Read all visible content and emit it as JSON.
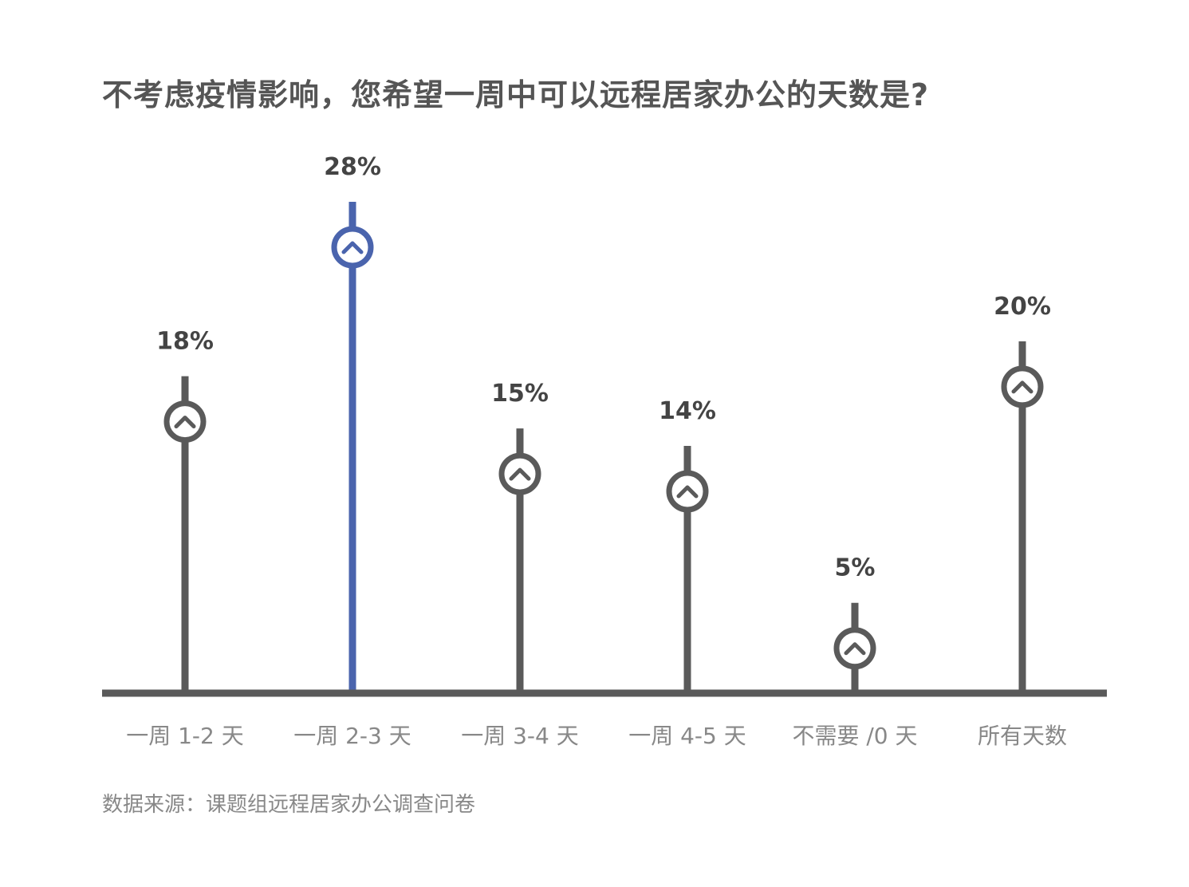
{
  "chart_data": {
    "type": "lollipop",
    "title": "不考虑疫情影响，您希望一周中可以远程居家办公的天数是?",
    "categories": [
      "一周 1-2 天",
      "一周 2-3 天",
      "一周 3-4 天",
      "一周 4-5 天",
      "不需要 /0 天",
      "所有天数"
    ],
    "values": [
      18,
      28,
      15,
      14,
      5,
      20
    ],
    "value_labels": [
      "18%",
      "28%",
      "15%",
      "14%",
      "5%",
      "20%"
    ],
    "highlight_index": 1,
    "unit": "%",
    "xlabel": "",
    "ylabel": "",
    "grid": false,
    "colors": {
      "default": "#5a5a5a",
      "highlight": "#4a64ad",
      "label": "#444444",
      "category": "#888888"
    }
  },
  "source": "数据来源：课题组远程居家办公调查问卷",
  "icons": {
    "marker": "chevron-up-circle-icon"
  }
}
